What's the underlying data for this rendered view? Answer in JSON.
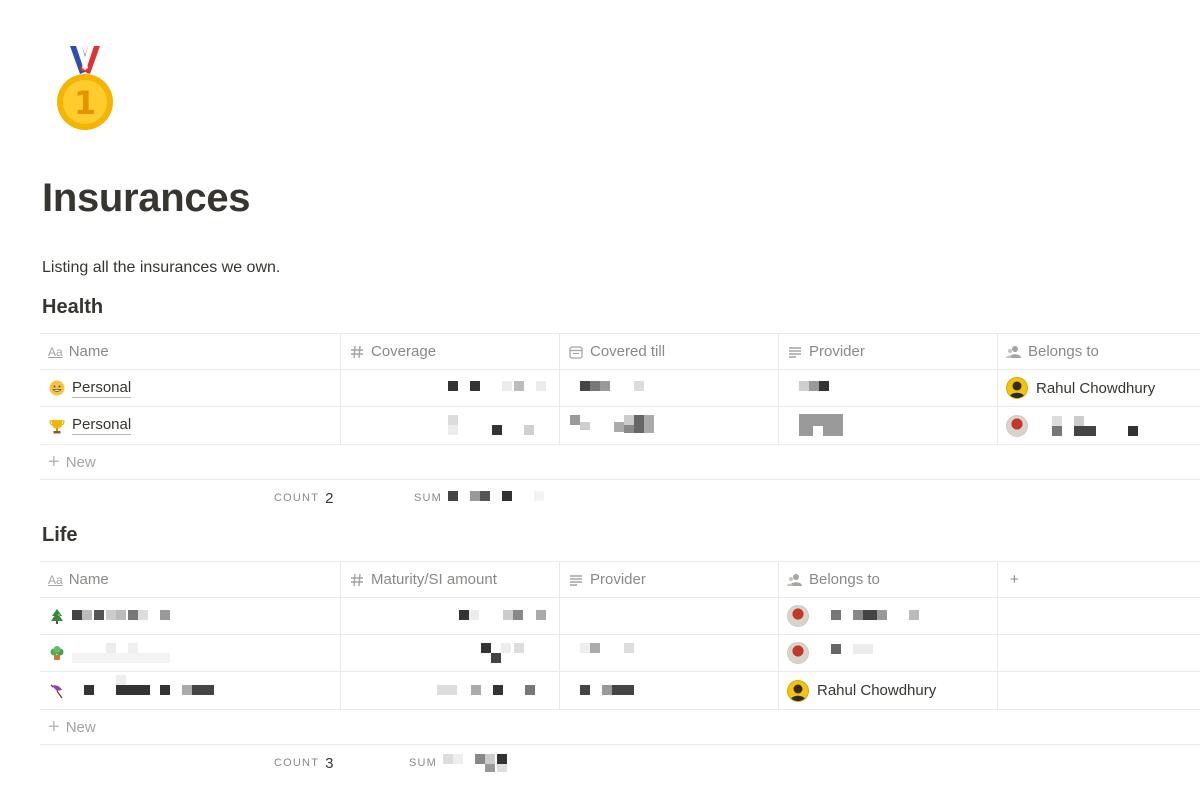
{
  "page": {
    "title": "Insurances",
    "description": "Listing all the insurances we own.",
    "icon": "first-place-medal-icon"
  },
  "health": {
    "title": "Health",
    "columns": [
      {
        "label": "Name",
        "icon": "text-property-icon"
      },
      {
        "label": "Coverage",
        "icon": "number-property-icon"
      },
      {
        "label": "Covered till",
        "icon": "date-property-icon"
      },
      {
        "label": "Provider",
        "icon": "text-lines-icon"
      },
      {
        "label": "Belongs to",
        "icon": "person-property-icon"
      }
    ],
    "rows": [
      {
        "name": "Personal",
        "icon": "grinning-face-icon",
        "belongs_to": "Rahul Chowdhury"
      },
      {
        "name": "Personal",
        "icon": "trophy-icon",
        "belongs_to": ""
      }
    ],
    "new_label": "New",
    "count_label": "COUNT",
    "count_value": "2",
    "sum_label": "SUM"
  },
  "life": {
    "title": "Life",
    "columns": [
      {
        "label": "Name",
        "icon": "text-property-icon"
      },
      {
        "label": "Maturity/SI amount",
        "icon": "number-property-icon"
      },
      {
        "label": "Provider",
        "icon": "text-lines-icon"
      },
      {
        "label": "Belongs to",
        "icon": "person-property-icon"
      }
    ],
    "add_column_icon": "plus-icon",
    "rows": [
      {
        "icon": "christmas-tree-icon",
        "belongs_to": ""
      },
      {
        "icon": "green-plant-icon",
        "belongs_to": ""
      },
      {
        "icon": "umbrella-icon",
        "belongs_to": "Rahul Chowdhury"
      }
    ],
    "new_label": "New",
    "count_label": "COUNT",
    "count_value": "3",
    "sum_label": "SUM"
  },
  "colors": {
    "text": "#37352f",
    "muted": "#8a8985",
    "border": "#e9e9e7"
  }
}
